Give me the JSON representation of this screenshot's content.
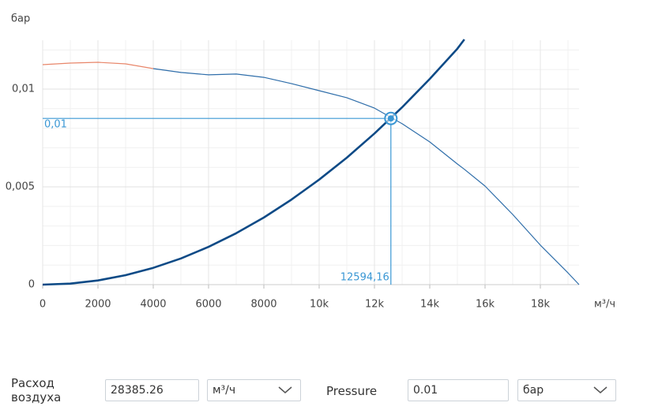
{
  "chart_data": {
    "type": "line",
    "y_label": "бар",
    "x_label": "м³/ч",
    "x": [
      0,
      1000,
      2000,
      3000,
      4000,
      5000,
      6000,
      7000,
      8000,
      9000,
      10000,
      11000,
      12000,
      13000,
      14000,
      15000,
      15250,
      16000,
      17000,
      18000,
      19000,
      19400
    ],
    "series": [
      {
        "color": "#e8866a",
        "width": 1.2,
        "values": [
          0.01125,
          0.01133,
          0.01137,
          0.01129,
          0.01105,
          null,
          null,
          null,
          null,
          null,
          null,
          null,
          null,
          null,
          null,
          null,
          null,
          null,
          null,
          null,
          null,
          null
        ]
      },
      {
        "color": "#2f6eaa",
        "width": 1.2,
        "values": [
          null,
          null,
          null,
          null,
          0.01105,
          0.01085,
          0.01073,
          0.01077,
          0.0106,
          0.01028,
          0.00992,
          0.00956,
          0.00903,
          0.00823,
          0.0073,
          0.00617,
          0.0059,
          0.00504,
          0.00359,
          0.00202,
          0.0006,
          0
        ]
      },
      {
        "color": "#0d4a86",
        "width": 2.6,
        "values": [
          0,
          5.37e-05,
          0.000215,
          0.000483,
          0.000858,
          0.00134,
          0.00193,
          0.00263,
          0.00343,
          0.00435,
          0.00537,
          0.00649,
          0.00773,
          0.00907,
          0.01052,
          0.01207,
          0.01254,
          null,
          null,
          null,
          null,
          null
        ]
      }
    ],
    "operating_point": {
      "x": 12594.16,
      "x_label": "12594,16",
      "y": 0.0085,
      "y_label": "0,01",
      "color": "#3a97d4"
    },
    "xlim": [
      0,
      19400
    ],
    "ylim": [
      0,
      0.0125
    ],
    "xticks": [
      0,
      2000,
      4000,
      6000,
      8000,
      {
        "value": 10000,
        "label": "10k"
      },
      {
        "value": 12000,
        "label": "12k"
      },
      {
        "value": 14000,
        "label": "14k"
      },
      {
        "value": 16000,
        "label": "16k"
      },
      {
        "value": 18000,
        "label": "18k"
      }
    ],
    "yticks": [
      0,
      {
        "value": 0.005,
        "label": "0,005"
      },
      {
        "value": 0.01,
        "label": "0,01"
      }
    ],
    "x_minor_ticks": [
      1000,
      3000,
      5000,
      7000,
      9000,
      11000,
      13000,
      15000,
      17000,
      19000
    ],
    "y_minor_ticks": [
      0.001,
      0.002,
      0.003,
      0.004,
      0.006,
      0.007,
      0.008,
      0.009,
      0.011,
      0.012
    ],
    "grid": true
  },
  "form": {
    "flow_label": "Расход воздуха",
    "flow_value": "28385.26",
    "flow_unit": "м³/ч",
    "pressure_label": "Pressure",
    "pressure_value": "0.01",
    "pressure_unit": "бар"
  }
}
